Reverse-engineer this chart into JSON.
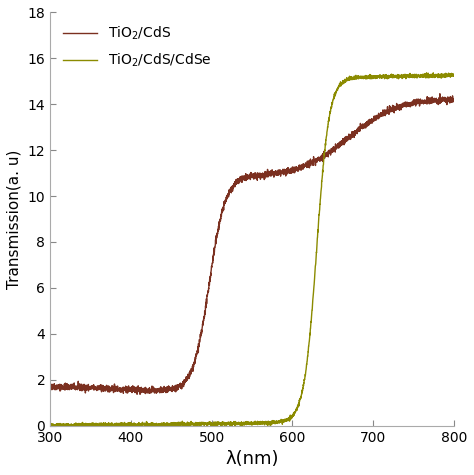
{
  "title": "",
  "xlabel": "λ(nm)",
  "ylabel": "Transmission(a. u)",
  "xlim": [
    300,
    800
  ],
  "ylim": [
    0,
    18
  ],
  "xticks": [
    300,
    400,
    500,
    600,
    700,
    800
  ],
  "yticks": [
    0,
    2,
    4,
    6,
    8,
    10,
    12,
    14,
    16,
    18
  ],
  "legend1": "TiO$_2$/CdS",
  "legend2": "TiO$_2$/CdS/CdSe",
  "color1": "#7B3020",
  "color2": "#8B8B00",
  "linewidth": 1.0,
  "noise_amplitude1": 0.07,
  "noise_amplitude2": 0.04
}
